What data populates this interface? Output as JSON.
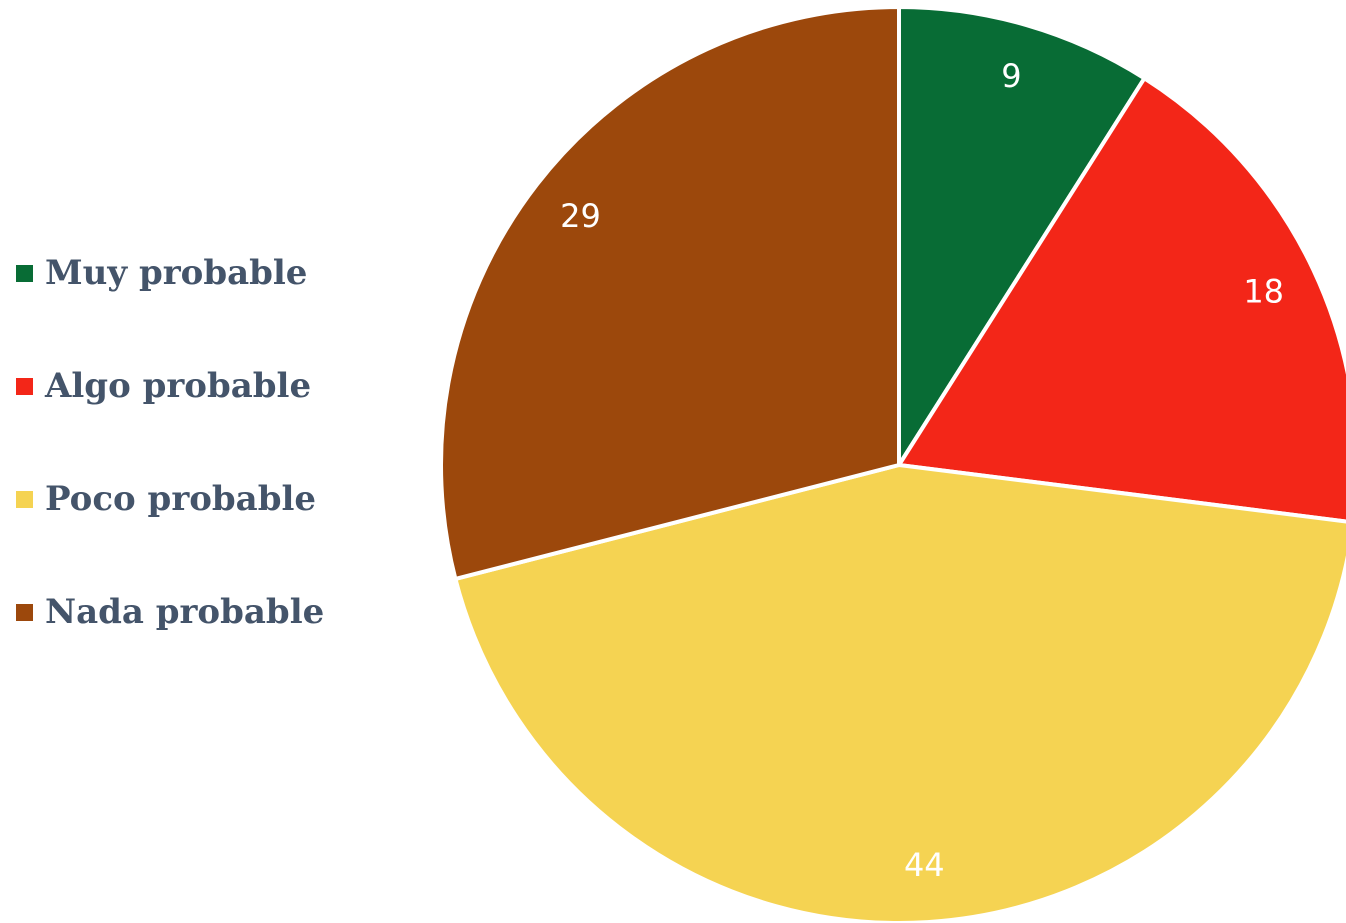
{
  "chart_data": {
    "type": "pie",
    "title": "",
    "legend_position": "left",
    "categories": [
      "Muy probable",
      "Algo probable",
      "Poco probable",
      "Nada probable"
    ],
    "values": [
      9,
      18,
      44,
      29
    ],
    "data_labels": [
      "9",
      "18",
      "44",
      "29"
    ],
    "colors": [
      "#086c35",
      "#f32618",
      "#f5d352",
      "#9c480c"
    ],
    "start_angle": "12 o'clock",
    "direction": "clockwise"
  }
}
